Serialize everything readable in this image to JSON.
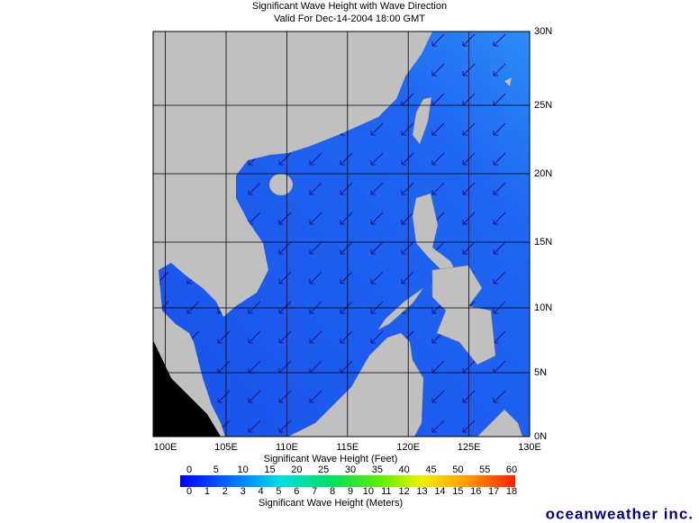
{
  "header": {
    "title": "Significant Wave Height with Wave Direction",
    "subtitle": "Valid For Dec-14-2004 18:00 GMT"
  },
  "map": {
    "lon_labels": [
      "100E",
      "105E",
      "110E",
      "115E",
      "120E",
      "125E",
      "130E"
    ],
    "lat_labels": [
      "30N",
      "25N",
      "20N",
      "15N",
      "10N",
      "5N",
      "0N"
    ]
  },
  "colorbar": {
    "feet_label": "Significant Wave Height (Feet)",
    "feet_ticks": [
      0,
      5,
      10,
      15,
      20,
      25,
      30,
      35,
      40,
      45,
      50,
      55,
      60
    ],
    "meters_label": "Significant Wave Height (Meters)",
    "meters_ticks": [
      0,
      1,
      2,
      3,
      4,
      5,
      6,
      7,
      8,
      9,
      10,
      11,
      12,
      13,
      14,
      15,
      16,
      17,
      18
    ]
  },
  "logo": "oceanweather inc."
}
